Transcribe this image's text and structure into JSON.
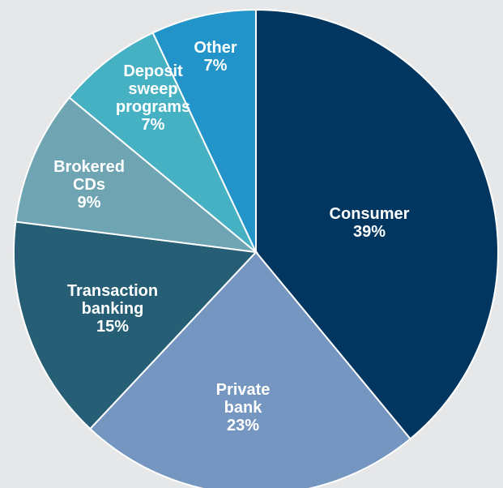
{
  "chart_data": {
    "type": "pie",
    "title": "",
    "start_angle_deg": 0,
    "direction": "clockwise",
    "slices": [
      {
        "name": "Consumer",
        "label_lines": [
          "Consumer"
        ],
        "value": 39,
        "value_label": "39%",
        "color": "#003660"
      },
      {
        "name": "Private bank",
        "label_lines": [
          "Private",
          "bank"
        ],
        "value": 23,
        "value_label": "23%",
        "color": "#7496c1"
      },
      {
        "name": "Transaction banking",
        "label_lines": [
          "Transaction",
          "banking"
        ],
        "value": 15,
        "value_label": "15%",
        "color": "#255e75"
      },
      {
        "name": "Brokered CDs",
        "label_lines": [
          "Brokered",
          "CDs"
        ],
        "value": 9,
        "value_label": "9%",
        "color": "#6fa4b3"
      },
      {
        "name": "Deposit sweep programs",
        "label_lines": [
          "Deposit",
          "sweep",
          "programs"
        ],
        "value": 7,
        "value_label": "7%",
        "color": "#45b1c3"
      },
      {
        "name": "Other",
        "label_lines": [
          "Other"
        ],
        "value": 7,
        "value_label": "7%",
        "color": "#2294c9"
      }
    ]
  }
}
